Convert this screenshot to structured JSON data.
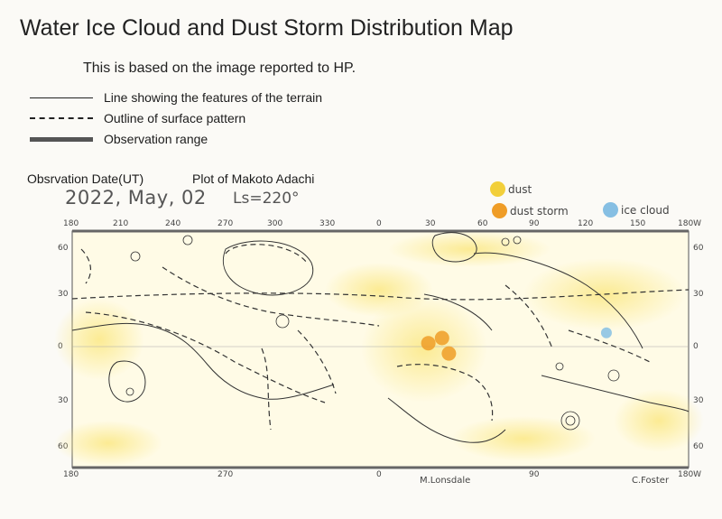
{
  "title": "Water Ice Cloud and Dust Storm Distribution Map",
  "subtitle": "This is based on the image reported to HP.",
  "legend": [
    {
      "style": "solid",
      "label": "Line showing the features of the terrain"
    },
    {
      "style": "dashed",
      "label": "Outline of surface pattern"
    },
    {
      "style": "thick",
      "label": "Observation range"
    }
  ],
  "observation": {
    "date_label": "Obsrvation Date(UT)",
    "plotter": "Plot of Makoto Adachi",
    "date": "2022, May, 02",
    "ls": "Ls=220°"
  },
  "cloud_legend": [
    {
      "label": "dust",
      "color": "#f2cf3a"
    },
    {
      "label": "dust storm",
      "color": "#ef9d27"
    },
    {
      "label": "ice cloud",
      "color": "#86bfe3"
    }
  ],
  "map": {
    "top_lon_ticks": [
      "180",
      "210",
      "240",
      "270",
      "300",
      "330",
      "0",
      "30",
      "60",
      "90",
      "120",
      "150",
      "180W"
    ],
    "bottom_lon_ticks": [
      "180",
      "270",
      "0",
      "90",
      "180W"
    ],
    "left_lat_ticks": [
      "60",
      "30",
      "0",
      "30",
      "60"
    ],
    "right_lat_ticks": [
      "60",
      "30",
      "0",
      "30",
      "60"
    ],
    "features": [
      {
        "type": "dust storm",
        "lon": 36,
        "lat": 5
      },
      {
        "type": "dust storm",
        "lon": 40,
        "lat": -4
      },
      {
        "type": "dust storm",
        "lon": 28,
        "lat": 2
      },
      {
        "type": "ice cloud",
        "lon": 132,
        "lat": 8
      }
    ]
  },
  "credits": {
    "left": "M.Lonsdale",
    "right": "C.Foster"
  }
}
